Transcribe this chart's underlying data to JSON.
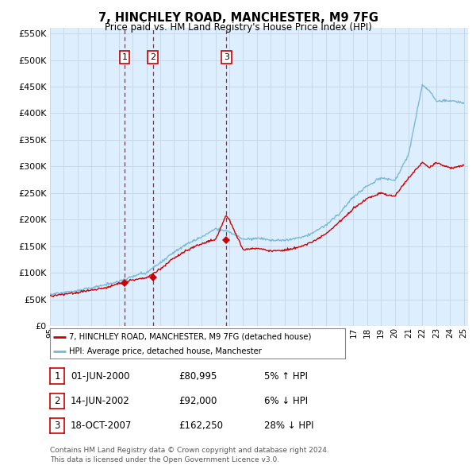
{
  "title": "7, HINCHLEY ROAD, MANCHESTER, M9 7FG",
  "subtitle": "Price paid vs. HM Land Registry's House Price Index (HPI)",
  "ytick_values": [
    0,
    50000,
    100000,
    150000,
    200000,
    250000,
    300000,
    350000,
    400000,
    450000,
    500000,
    550000
  ],
  "x_start_year": 1995,
  "x_end_year": 2025,
  "hpi_color": "#7ab8d8",
  "price_color": "#cc0000",
  "vline_color": "#cc0000",
  "plot_bg_color": "#ddeeff",
  "sale_dates": [
    "2000-06-01",
    "2002-06-14",
    "2007-10-18"
  ],
  "sale_prices": [
    80995,
    92000,
    162250
  ],
  "sale_labels": [
    "1",
    "2",
    "3"
  ],
  "legend_label_price": "7, HINCHLEY ROAD, MANCHESTER, M9 7FG (detached house)",
  "legend_label_hpi": "HPI: Average price, detached house, Manchester",
  "table_rows": [
    [
      "1",
      "01-JUN-2000",
      "£80,995",
      "5% ↑ HPI"
    ],
    [
      "2",
      "14-JUN-2002",
      "£92,000",
      "6% ↓ HPI"
    ],
    [
      "3",
      "18-OCT-2007",
      "£162,250",
      "28% ↓ HPI"
    ]
  ],
  "footnote": "Contains HM Land Registry data © Crown copyright and database right 2024.\nThis data is licensed under the Open Government Licence v3.0.",
  "background_color": "#ffffff",
  "grid_color": "#c8d8e8"
}
